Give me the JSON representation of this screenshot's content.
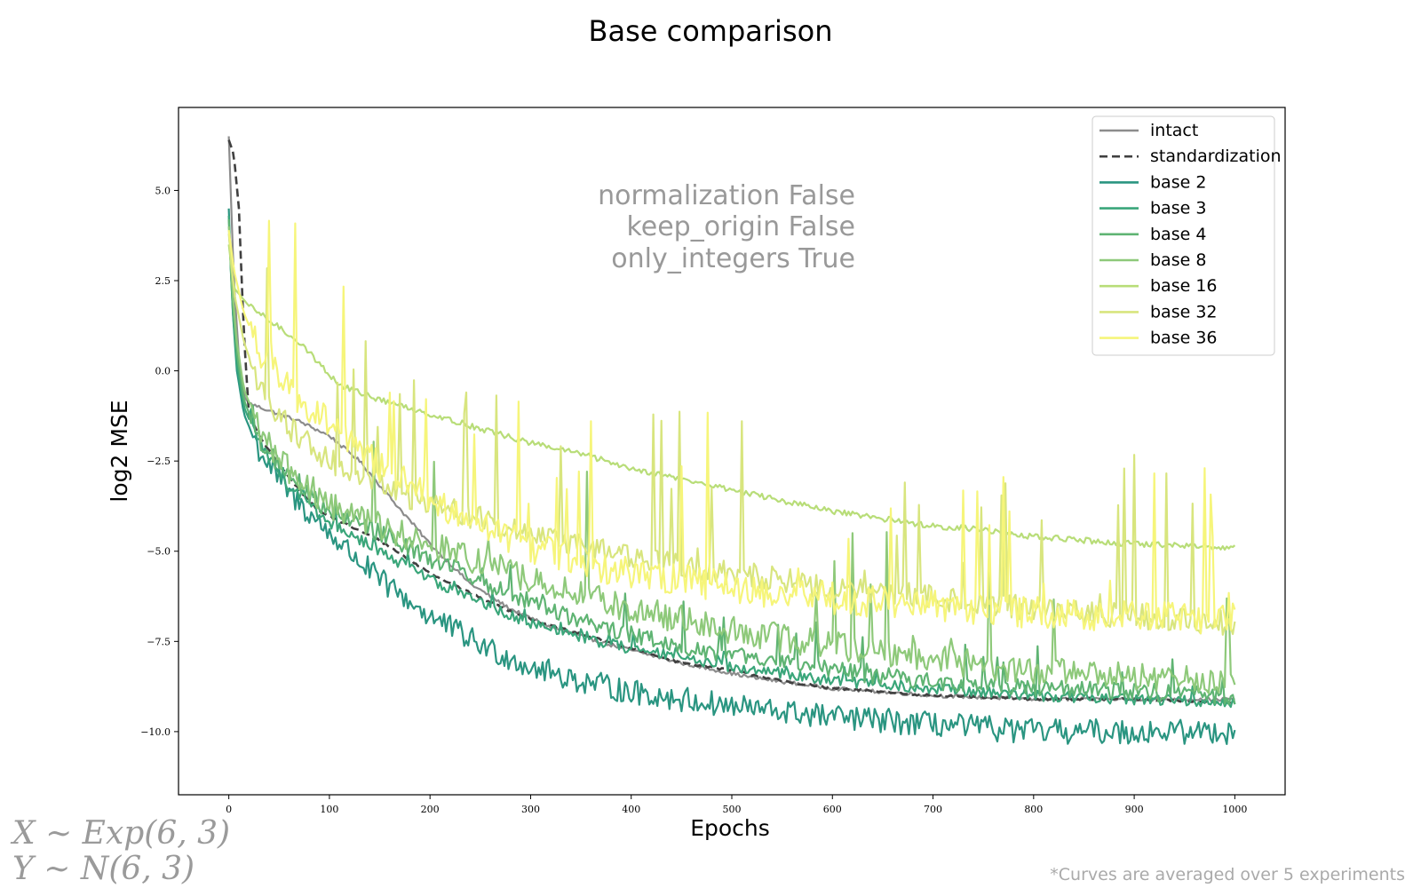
{
  "chart_data": {
    "type": "line",
    "title": "Base comparison",
    "xlabel": "Epochs",
    "ylabel": "log2 MSE",
    "xlim": [
      -50,
      1050
    ],
    "ylim": [
      -11.75,
      7.3
    ],
    "xticks": [
      0,
      100,
      200,
      300,
      400,
      500,
      600,
      700,
      800,
      900,
      1000
    ],
    "yticks": [
      -10.0,
      -7.5,
      -5.0,
      -2.5,
      0.0,
      2.5,
      5.0
    ],
    "ytick_labels": [
      "−10.0",
      "−7.5",
      "−5.0",
      "−2.5",
      "0.0",
      "2.5",
      "5.0"
    ],
    "grid": false,
    "legend_position": "top-right",
    "annotation": [
      "normalization False",
      "keep_origin False",
      "only_integers True"
    ],
    "footnote": "*Curves are averaged over 5 experiments",
    "formula": [
      "X ∼ Exp(6, 3)",
      "Y ∼ N(6, 3)"
    ],
    "series": [
      {
        "name": "intact",
        "color": "#8c8c8c",
        "dash": "solid",
        "noise": 0.05,
        "spikes": 0.0,
        "points": [
          [
            0,
            6.5
          ],
          [
            5,
            2.5
          ],
          [
            10,
            0.4
          ],
          [
            15,
            -0.7
          ],
          [
            20,
            -0.9
          ],
          [
            40,
            -1.1
          ],
          [
            70,
            -1.4
          ],
          [
            100,
            -1.8
          ],
          [
            130,
            -2.5
          ],
          [
            160,
            -3.5
          ],
          [
            200,
            -4.8
          ],
          [
            240,
            -5.9
          ],
          [
            280,
            -6.6
          ],
          [
            320,
            -7.1
          ],
          [
            380,
            -7.6
          ],
          [
            450,
            -8.1
          ],
          [
            520,
            -8.5
          ],
          [
            600,
            -8.8
          ],
          [
            700,
            -9.0
          ],
          [
            800,
            -9.1
          ],
          [
            900,
            -9.1
          ],
          [
            1000,
            -9.1
          ]
        ]
      },
      {
        "name": "standardization",
        "color": "#404040",
        "dash": "dashed",
        "noise": 0.03,
        "spikes": 0.0,
        "points": [
          [
            0,
            6.4
          ],
          [
            5,
            6.0
          ],
          [
            10,
            4.5
          ],
          [
            15,
            1.0
          ],
          [
            20,
            -1.2
          ],
          [
            30,
            -1.8
          ],
          [
            50,
            -2.6
          ],
          [
            70,
            -3.3
          ],
          [
            90,
            -3.9
          ],
          [
            120,
            -4.3
          ],
          [
            150,
            -4.7
          ],
          [
            200,
            -5.6
          ],
          [
            250,
            -6.3
          ],
          [
            300,
            -6.9
          ],
          [
            350,
            -7.3
          ],
          [
            400,
            -7.7
          ],
          [
            450,
            -8.1
          ],
          [
            500,
            -8.3
          ],
          [
            550,
            -8.6
          ],
          [
            600,
            -8.8
          ],
          [
            700,
            -9.0
          ],
          [
            800,
            -9.1
          ],
          [
            900,
            -9.1
          ],
          [
            1000,
            -9.2
          ]
        ]
      },
      {
        "name": "base 2",
        "color": "#2a9581",
        "dash": "solid",
        "noise": 0.35,
        "spikes": 0.0,
        "points": [
          [
            0,
            4.5
          ],
          [
            3,
            2.0
          ],
          [
            8,
            0.0
          ],
          [
            15,
            -1.2
          ],
          [
            30,
            -2.2
          ],
          [
            60,
            -3.4
          ],
          [
            100,
            -4.5
          ],
          [
            150,
            -5.8
          ],
          [
            200,
            -6.8
          ],
          [
            250,
            -7.6
          ],
          [
            300,
            -8.2
          ],
          [
            350,
            -8.6
          ],
          [
            400,
            -8.9
          ],
          [
            500,
            -9.3
          ],
          [
            600,
            -9.6
          ],
          [
            700,
            -9.8
          ],
          [
            800,
            -10.0
          ],
          [
            900,
            -10.0
          ],
          [
            1000,
            -10.0
          ]
        ]
      },
      {
        "name": "base 3",
        "color": "#3aa67a",
        "dash": "solid",
        "noise": 0.15,
        "spikes": 0.3,
        "points": [
          [
            0,
            4.3
          ],
          [
            3,
            2.0
          ],
          [
            8,
            0.2
          ],
          [
            15,
            -1.0
          ],
          [
            30,
            -2.0
          ],
          [
            60,
            -3.2
          ],
          [
            100,
            -4.2
          ],
          [
            150,
            -5.0
          ],
          [
            200,
            -5.8
          ],
          [
            250,
            -6.4
          ],
          [
            300,
            -7.0
          ],
          [
            350,
            -7.4
          ],
          [
            400,
            -7.7
          ],
          [
            500,
            -8.2
          ],
          [
            600,
            -8.6
          ],
          [
            700,
            -8.8
          ],
          [
            800,
            -9.0
          ],
          [
            900,
            -9.1
          ],
          [
            1000,
            -9.2
          ]
        ]
      },
      {
        "name": "base 4",
        "color": "#5fb473",
        "dash": "solid",
        "noise": 0.25,
        "spikes": 0.8,
        "points": [
          [
            0,
            4.2
          ],
          [
            3,
            2.2
          ],
          [
            8,
            0.5
          ],
          [
            15,
            -0.8
          ],
          [
            30,
            -1.9
          ],
          [
            60,
            -3.0
          ],
          [
            100,
            -3.9
          ],
          [
            150,
            -4.5
          ],
          [
            200,
            -5.2
          ],
          [
            250,
            -5.8
          ],
          [
            300,
            -6.4
          ],
          [
            350,
            -6.9
          ],
          [
            400,
            -7.3
          ],
          [
            500,
            -7.9
          ],
          [
            600,
            -8.3
          ],
          [
            700,
            -8.6
          ],
          [
            800,
            -8.8
          ],
          [
            900,
            -8.9
          ],
          [
            1000,
            -9.0
          ]
        ]
      },
      {
        "name": "base 8",
        "color": "#8ec97a",
        "dash": "solid",
        "noise": 0.4,
        "spikes": 2.0,
        "points": [
          [
            0,
            4.0
          ],
          [
            3,
            2.4
          ],
          [
            8,
            0.8
          ],
          [
            15,
            -0.5
          ],
          [
            30,
            -1.6
          ],
          [
            60,
            -2.8
          ],
          [
            100,
            -3.7
          ],
          [
            150,
            -4.3
          ],
          [
            200,
            -4.8
          ],
          [
            250,
            -5.3
          ],
          [
            300,
            -5.8
          ],
          [
            350,
            -6.2
          ],
          [
            400,
            -6.6
          ],
          [
            500,
            -7.2
          ],
          [
            600,
            -7.6
          ],
          [
            700,
            -8.0
          ],
          [
            800,
            -8.3
          ],
          [
            900,
            -8.5
          ],
          [
            1000,
            -8.6
          ]
        ]
      },
      {
        "name": "base 16",
        "color": "#b8dd78",
        "dash": "solid",
        "noise": 0.08,
        "spikes": 0.0,
        "points": [
          [
            0,
            3.5
          ],
          [
            5,
            2.3
          ],
          [
            20,
            1.8
          ],
          [
            40,
            1.4
          ],
          [
            70,
            0.8
          ],
          [
            90,
            0.2
          ],
          [
            110,
            -0.4
          ],
          [
            150,
            -0.8
          ],
          [
            200,
            -1.2
          ],
          [
            250,
            -1.6
          ],
          [
            300,
            -2.0
          ],
          [
            350,
            -2.3
          ],
          [
            400,
            -2.7
          ],
          [
            450,
            -3.0
          ],
          [
            500,
            -3.3
          ],
          [
            550,
            -3.6
          ],
          [
            600,
            -3.9
          ],
          [
            650,
            -4.1
          ],
          [
            700,
            -4.3
          ],
          [
            750,
            -4.4
          ],
          [
            800,
            -4.6
          ],
          [
            900,
            -4.8
          ],
          [
            1000,
            -4.9
          ]
        ]
      },
      {
        "name": "base 32",
        "color": "#d8e57e",
        "dash": "solid",
        "noise": 0.35,
        "spikes": 2.8,
        "points": [
          [
            0,
            3.8
          ],
          [
            5,
            2.2
          ],
          [
            15,
            0.8
          ],
          [
            30,
            -0.4
          ],
          [
            60,
            -1.6
          ],
          [
            100,
            -2.5
          ],
          [
            150,
            -3.2
          ],
          [
            200,
            -3.7
          ],
          [
            250,
            -4.1
          ],
          [
            300,
            -4.5
          ],
          [
            350,
            -4.8
          ],
          [
            400,
            -5.1
          ],
          [
            500,
            -5.6
          ],
          [
            600,
            -6.0
          ],
          [
            700,
            -6.3
          ],
          [
            800,
            -6.6
          ],
          [
            900,
            -6.8
          ],
          [
            1000,
            -7.0
          ]
        ]
      },
      {
        "name": "base 36",
        "color": "#f6f57a",
        "dash": "solid",
        "noise": 0.45,
        "spikes": 2.8,
        "points": [
          [
            0,
            3.9
          ],
          [
            5,
            2.8
          ],
          [
            15,
            1.6
          ],
          [
            30,
            0.6
          ],
          [
            60,
            -0.5
          ],
          [
            100,
            -1.5
          ],
          [
            150,
            -2.6
          ],
          [
            200,
            -3.6
          ],
          [
            250,
            -4.3
          ],
          [
            300,
            -4.9
          ],
          [
            350,
            -5.3
          ],
          [
            400,
            -5.6
          ],
          [
            500,
            -6.0
          ],
          [
            600,
            -6.3
          ],
          [
            700,
            -6.5
          ],
          [
            800,
            -6.7
          ],
          [
            900,
            -6.8
          ],
          [
            1000,
            -6.9
          ]
        ]
      }
    ]
  }
}
